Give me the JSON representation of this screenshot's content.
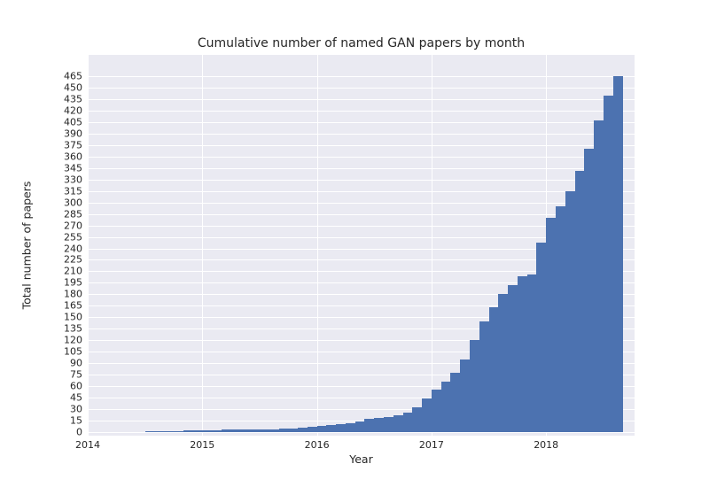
{
  "chart_data": {
    "type": "bar",
    "title": "Cumulative number of named GAN papers by month",
    "xlabel": "Year",
    "ylabel": "Total number of papers",
    "x": [
      "2014-07",
      "2014-08",
      "2014-09",
      "2014-10",
      "2014-11",
      "2014-12",
      "2015-01",
      "2015-02",
      "2015-03",
      "2015-04",
      "2015-05",
      "2015-06",
      "2015-07",
      "2015-08",
      "2015-09",
      "2015-10",
      "2015-11",
      "2015-12",
      "2016-01",
      "2016-02",
      "2016-03",
      "2016-04",
      "2016-05",
      "2016-06",
      "2016-07",
      "2016-08",
      "2016-09",
      "2016-10",
      "2016-11",
      "2016-12",
      "2017-01",
      "2017-02",
      "2017-03",
      "2017-04",
      "2017-05",
      "2017-06",
      "2017-07",
      "2017-08",
      "2017-09",
      "2017-10",
      "2017-11",
      "2017-12",
      "2018-01",
      "2018-02",
      "2018-03",
      "2018-04",
      "2018-05",
      "2018-06",
      "2018-07",
      "2018-08"
    ],
    "values": [
      1,
      1,
      1,
      1,
      2,
      2,
      2,
      2,
      3,
      3,
      3,
      4,
      4,
      4,
      5,
      5,
      6,
      7,
      8,
      9,
      10,
      12,
      14,
      17,
      19,
      20,
      22,
      26,
      32,
      44,
      55,
      66,
      78,
      95,
      120,
      145,
      163,
      180,
      192,
      204,
      206,
      248,
      280,
      295,
      315,
      341,
      370,
      407,
      440,
      465
    ],
    "x_tick_labels": [
      "2014",
      "2015",
      "2016",
      "2017",
      "2018"
    ],
    "y_ticks": {
      "min": 0,
      "max": 465,
      "step": 15
    },
    "ylim": [
      0,
      493
    ],
    "xlim": [
      "2014-01",
      "2018-10"
    ],
    "grid": true,
    "legend": "none",
    "colors": {
      "bar": "#4c72b0",
      "plot_bg": "#eaeaf2",
      "grid": "#ffffff",
      "text": "#262626",
      "figure_bg": "#ffffff"
    }
  }
}
